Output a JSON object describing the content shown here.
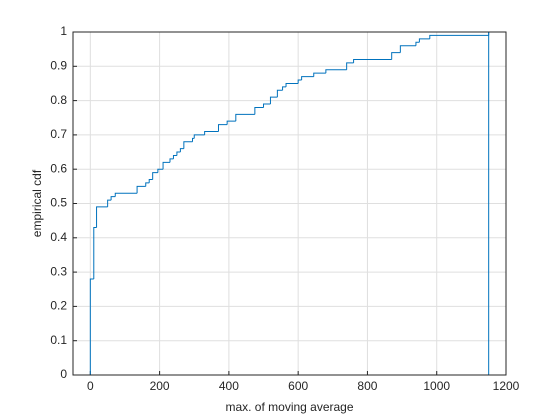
{
  "chart_data": {
    "type": "stairs",
    "xlabel": "max. of moving average",
    "ylabel": "empirical cdf",
    "x": [
      0,
      0,
      10,
      18,
      50,
      60,
      72,
      135,
      160,
      170,
      180,
      195,
      210,
      230,
      240,
      250,
      260,
      270,
      295,
      300,
      330,
      370,
      395,
      420,
      475,
      500,
      520,
      540,
      555,
      565,
      600,
      610,
      645,
      680,
      740,
      760,
      870,
      895,
      940,
      950,
      980,
      1150,
      1150
    ],
    "series": [
      {
        "name": "ecdf",
        "color": "#0072bd",
        "values": [
          0,
          0.28,
          0.43,
          0.49,
          0.51,
          0.52,
          0.53,
          0.55,
          0.56,
          0.57,
          0.59,
          0.6,
          0.62,
          0.63,
          0.64,
          0.65,
          0.66,
          0.68,
          0.69,
          0.7,
          0.71,
          0.73,
          0.74,
          0.76,
          0.78,
          0.79,
          0.81,
          0.83,
          0.84,
          0.85,
          0.86,
          0.87,
          0.88,
          0.89,
          0.91,
          0.92,
          0.94,
          0.96,
          0.97,
          0.98,
          0.99,
          1,
          0
        ]
      }
    ],
    "xlim": [
      -50,
      1200
    ],
    "ylim": [
      0,
      1
    ],
    "xticks": [
      0,
      200,
      400,
      600,
      800,
      1000,
      1200
    ],
    "yticks": [
      0,
      0.1,
      0.2,
      0.3,
      0.4,
      0.5,
      0.6,
      0.7,
      0.8,
      0.9,
      1
    ],
    "grid": true
  }
}
